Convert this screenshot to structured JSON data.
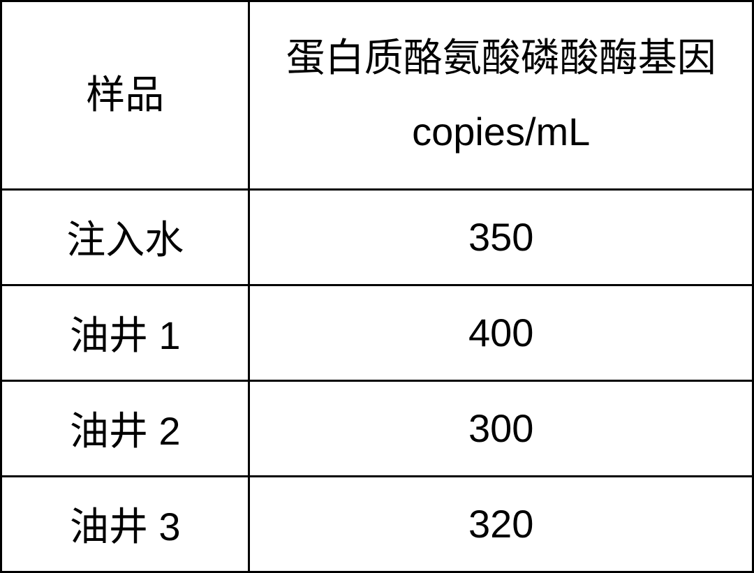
{
  "table": {
    "columns": {
      "sample": "样品",
      "value_line1": "蛋白质酪氨酸磷酸酶基因",
      "value_line2": "copies/mL"
    },
    "rows": [
      {
        "sample": "注入水",
        "value": "350"
      },
      {
        "sample_prefix": "油井",
        "sample_num": "1",
        "value": "400"
      },
      {
        "sample_prefix": "油井",
        "sample_num": "2",
        "value": "300"
      },
      {
        "sample_prefix": "油井",
        "sample_num": "3",
        "value": "320"
      }
    ],
    "styling": {
      "border_color": "#000000",
      "border_width": 3,
      "background_color": "#ffffff",
      "text_color": "#000000",
      "header_fontsize": 56,
      "cell_fontsize": 56,
      "col_widths_pct": [
        33,
        67
      ],
      "header_row_height_pct": 33,
      "data_row_height_pct": 16.75
    }
  }
}
